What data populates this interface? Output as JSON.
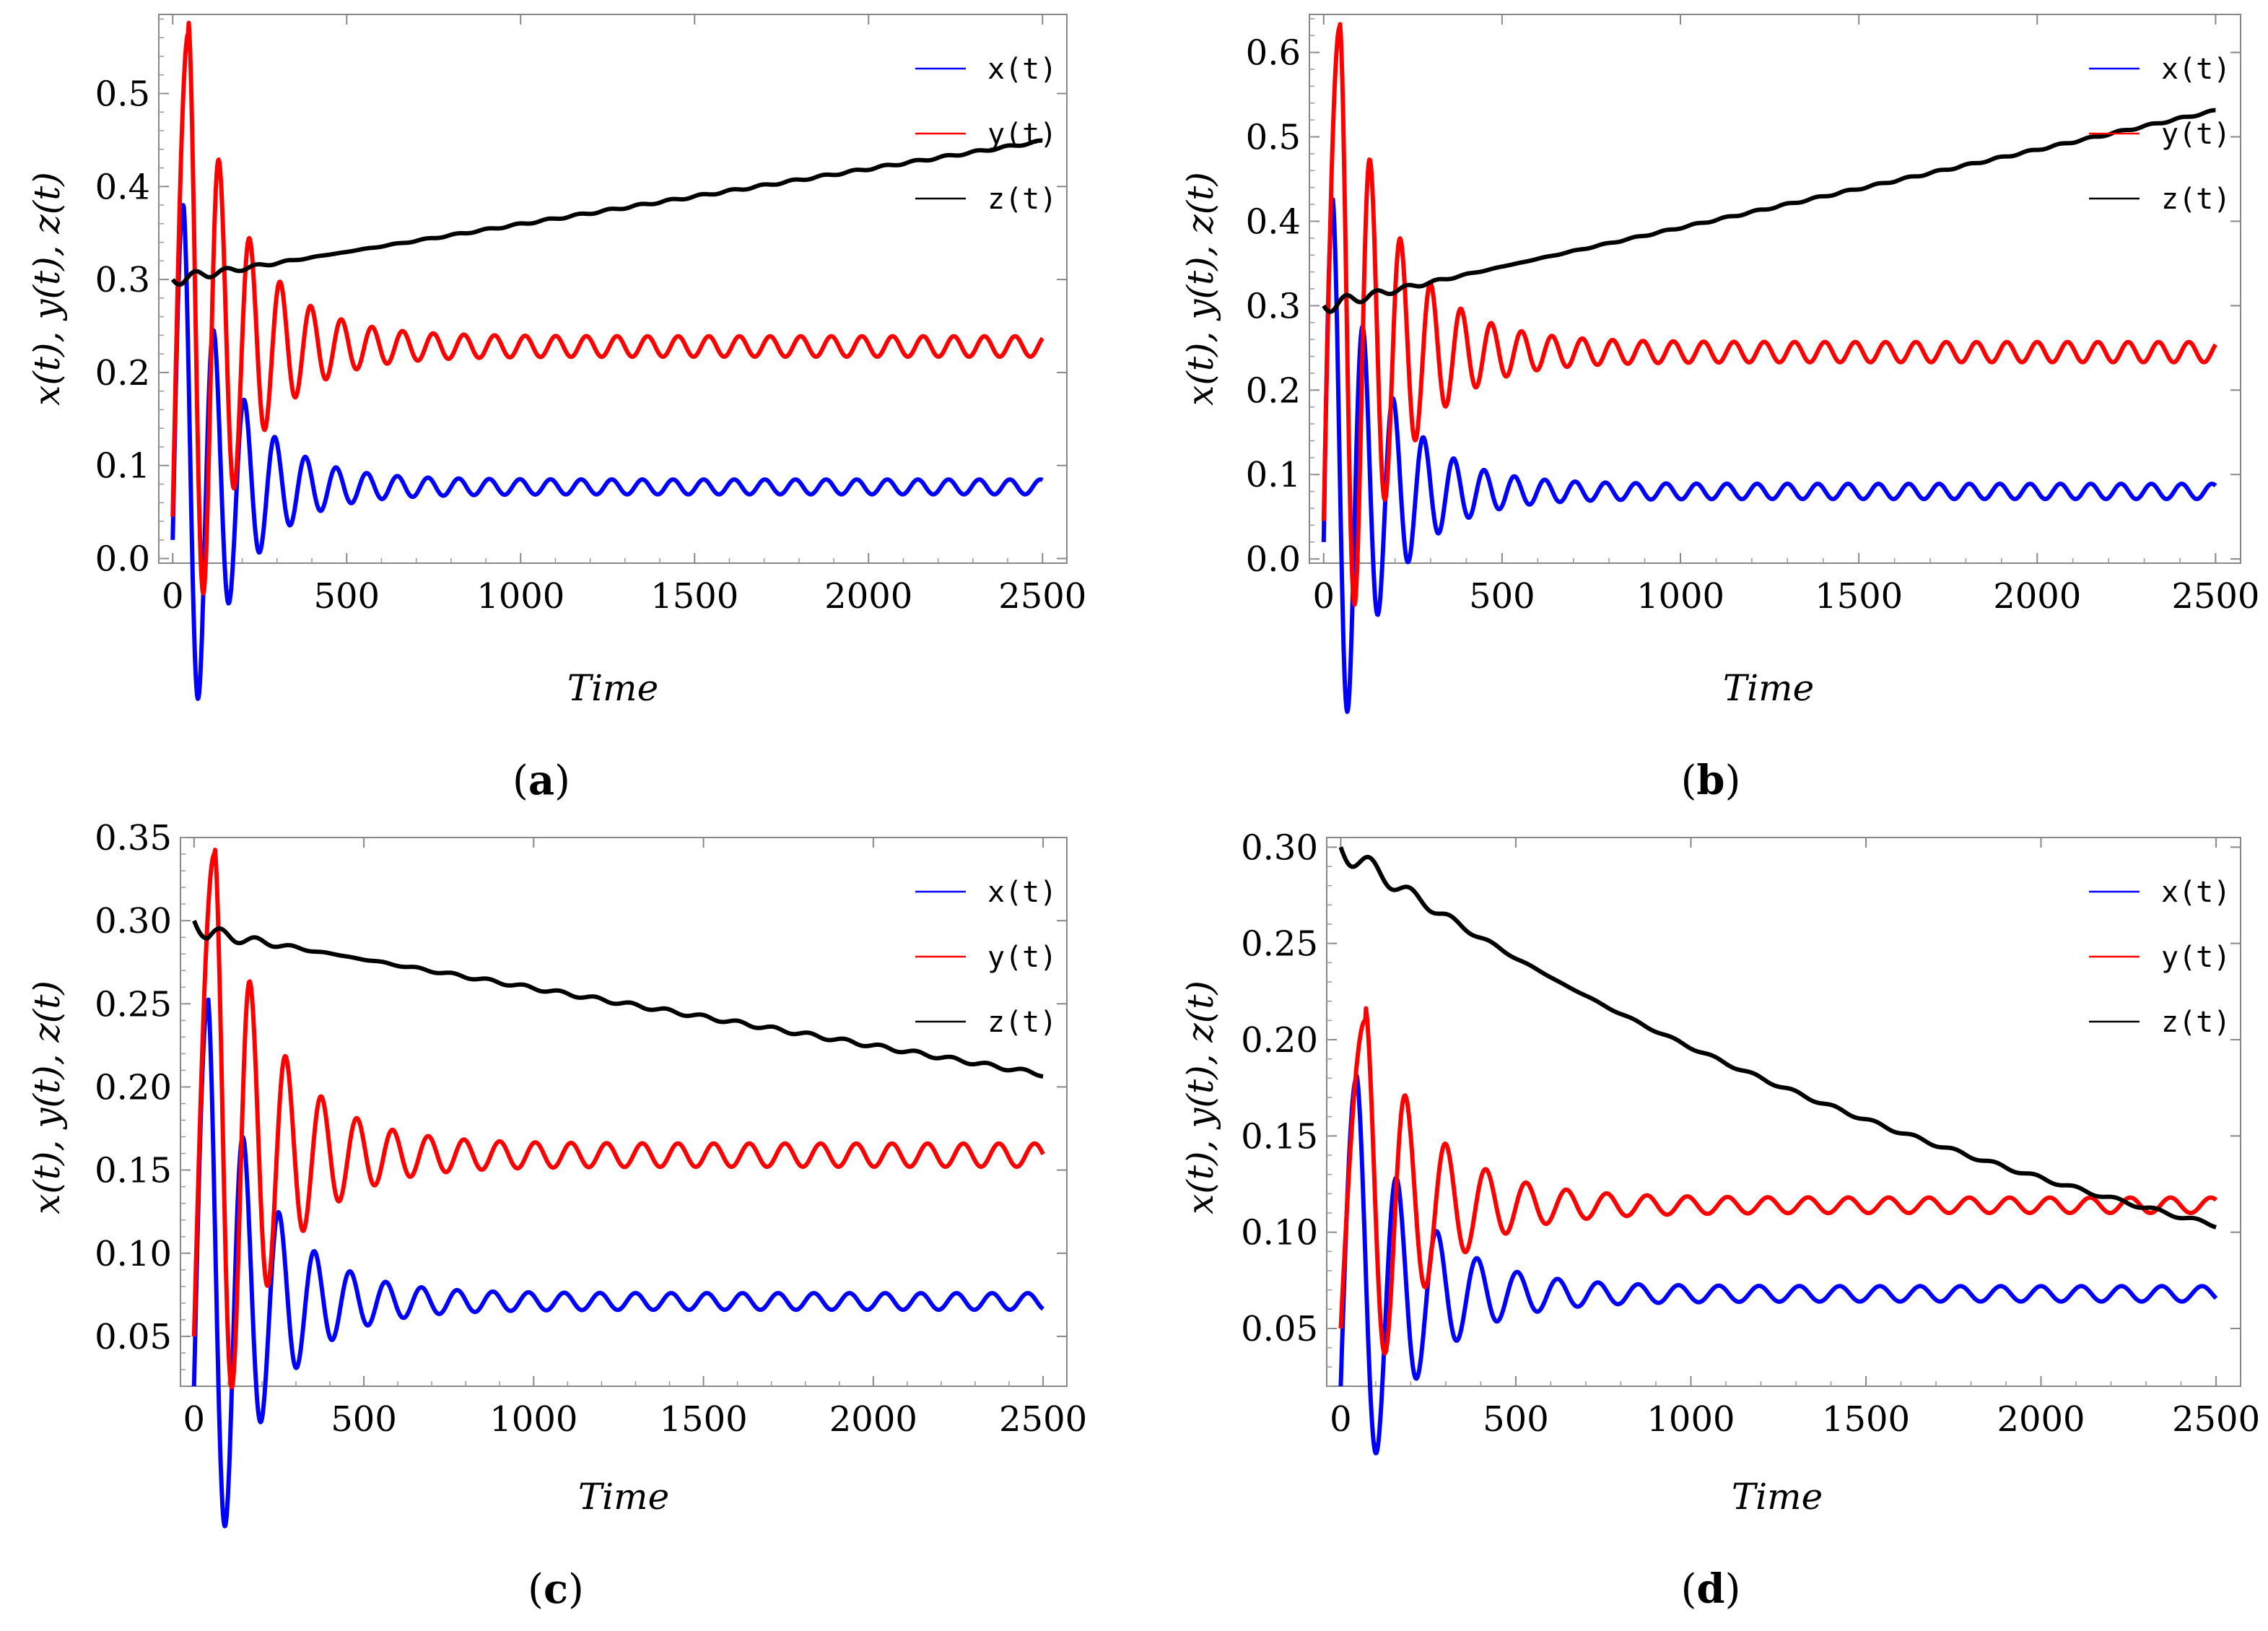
{
  "figure": {
    "panels": 4
  },
  "chart_data": [
    {
      "type": "line",
      "caption": "(a)",
      "caption_letter": "a",
      "xlabel": "Time",
      "ylabel": "x(t),  y(t),  z(t)",
      "xlim": [
        -40,
        2570
      ],
      "ylim": [
        -0.005,
        0.585
      ],
      "xticks": [
        0,
        500,
        1000,
        1500,
        2000,
        2500
      ],
      "xtick_labels": [
        "0",
        "500",
        "1000",
        "1500",
        "2000",
        "2500"
      ],
      "yticks": [
        0.0,
        0.1,
        0.2,
        0.3,
        0.4,
        0.5
      ],
      "ytick_labels": [
        "0.0",
        "0.1",
        "0.2",
        "0.3",
        "0.4",
        "0.5"
      ],
      "legend": [
        "x(t)",
        "y(t)",
        "z(t)"
      ],
      "legend_position": "top-right",
      "series": [
        {
          "name": "x(t)",
          "color": "#0000ff",
          "model": "osc",
          "start": 0.02,
          "level": 0.077,
          "peak": 0.38,
          "peak_t": 30,
          "period": 88,
          "amp0": 0.3,
          "decay": 140,
          "residual": 0.008,
          "slope": 0
        },
        {
          "name": "y(t)",
          "color": "#ff0000",
          "model": "osc",
          "start": 0.045,
          "level": 0.228,
          "peak": 0.565,
          "peak_t": 45,
          "period": 88,
          "amp0": 0.34,
          "decay": 150,
          "residual": 0.011,
          "slope": 0
        },
        {
          "name": "z(t)",
          "color": "#000000",
          "model": "drift",
          "start": 0.3,
          "base": 0.3,
          "slope": 5.95e-05,
          "end": 0.45,
          "ripple": 0.008,
          "ripple_decay": 250,
          "period": 88
        }
      ]
    },
    {
      "type": "line",
      "caption": "(b)",
      "caption_letter": "b",
      "xlabel": "Time",
      "ylabel": "x(t),  y(t),  z(t)",
      "xlim": [
        -40,
        2570
      ],
      "ylim": [
        -0.005,
        0.645
      ],
      "xticks": [
        0,
        500,
        1000,
        1500,
        2000,
        2500
      ],
      "xtick_labels": [
        "0",
        "500",
        "1000",
        "1500",
        "2000",
        "2500"
      ],
      "yticks": [
        0.0,
        0.1,
        0.2,
        0.3,
        0.4,
        0.5,
        0.6
      ],
      "ytick_labels": [
        "0.0",
        "0.1",
        "0.2",
        "0.3",
        "0.4",
        "0.5",
        "0.6"
      ],
      "legend": [
        "x(t)",
        "y(t)",
        "z(t)"
      ],
      "legend_position": "top-right",
      "series": [
        {
          "name": "x(t)",
          "color": "#0000ff",
          "model": "osc",
          "start": 0.02,
          "level": 0.08,
          "peak": 0.42,
          "peak_t": 25,
          "period": 85,
          "amp0": 0.34,
          "decay": 140,
          "residual": 0.009,
          "slope": 0
        },
        {
          "name": "y(t)",
          "color": "#ff0000",
          "model": "osc",
          "start": 0.045,
          "level": 0.245,
          "peak": 0.63,
          "peak_t": 45,
          "period": 85,
          "amp0": 0.38,
          "decay": 150,
          "residual": 0.012,
          "slope": 0
        },
        {
          "name": "z(t)",
          "color": "#000000",
          "model": "drift",
          "start": 0.3,
          "base": 0.3,
          "slope": 9.24e-05,
          "end": 0.53,
          "ripple": 0.01,
          "ripple_decay": 250,
          "period": 85
        }
      ]
    },
    {
      "type": "line",
      "caption": "(c)",
      "caption_letter": "c",
      "xlabel": "Time",
      "ylabel": "x(t),  y(t),  z(t)",
      "xlim": [
        -40,
        2570
      ],
      "ylim": [
        0.02,
        0.35
      ],
      "xticks": [
        0,
        500,
        1000,
        1500,
        2000,
        2500
      ],
      "xtick_labels": [
        "0",
        "500",
        "1000",
        "1500",
        "2000",
        "2500"
      ],
      "yticks": [
        0.05,
        0.1,
        0.15,
        0.2,
        0.25,
        0.3,
        0.35
      ],
      "ytick_labels": [
        "0.05",
        "0.10",
        "0.15",
        "0.20",
        "0.25",
        "0.30",
        "0.35"
      ],
      "legend": [
        "x(t)",
        "y(t)",
        "z(t)"
      ],
      "legend_position": "top-right",
      "series": [
        {
          "name": "x(t)",
          "color": "#0000ff",
          "model": "osc",
          "start": 0.02,
          "level": 0.071,
          "peak": 0.25,
          "peak_t": 40,
          "period": 105,
          "amp0": 0.18,
          "decay": 160,
          "residual": 0.005,
          "slope": 0
        },
        {
          "name": "y(t)",
          "color": "#ff0000",
          "model": "osc",
          "start": 0.05,
          "level": 0.159,
          "peak": 0.34,
          "peak_t": 60,
          "period": 105,
          "amp0": 0.18,
          "decay": 170,
          "residual": 0.007,
          "slope": 0
        },
        {
          "name": "z(t)",
          "color": "#000000",
          "model": "drift",
          "start": 0.3,
          "base": 0.294,
          "slope": -3.46e-05,
          "end": 0.207,
          "ripple": 0.007,
          "ripple_decay": 250,
          "period": 105
        }
      ]
    },
    {
      "type": "line",
      "caption": "(d)",
      "caption_letter": "d",
      "xlabel": "Time",
      "ylabel": "x(t),  y(t),  z(t)",
      "xlim": [
        -40,
        2570
      ],
      "ylim": [
        0.02,
        0.305
      ],
      "xticks": [
        0,
        500,
        1000,
        1500,
        2000,
        2500
      ],
      "xtick_labels": [
        "0",
        "500",
        "1000",
        "1500",
        "2000",
        "2500"
      ],
      "yticks": [
        0.05,
        0.1,
        0.15,
        0.2,
        0.25,
        0.3
      ],
      "ytick_labels": [
        "0.05",
        "0.10",
        "0.15",
        "0.20",
        "0.25",
        "0.30"
      ],
      "legend": [
        "x(t)",
        "y(t)",
        "z(t)"
      ],
      "legend_position": "top-right",
      "series": [
        {
          "name": "x(t)",
          "color": "#0000ff",
          "model": "osc",
          "start": 0.02,
          "level": 0.068,
          "peak": 0.18,
          "peak_t": 45,
          "period": 115,
          "amp0": 0.11,
          "decay": 170,
          "residual": 0.004,
          "slope": 0
        },
        {
          "name": "y(t)",
          "color": "#ff0000",
          "model": "osc",
          "start": 0.05,
          "level": 0.114,
          "peak": 0.21,
          "peak_t": 70,
          "period": 115,
          "amp0": 0.1,
          "decay": 180,
          "residual": 0.004,
          "slope": 0
        },
        {
          "name": "z(t)",
          "color": "#000000",
          "model": "expdecay",
          "start": 0.3,
          "tau": 2350,
          "end": 0.105,
          "ripple": 0.008,
          "ripple_decay": 300,
          "period": 115
        }
      ]
    }
  ]
}
